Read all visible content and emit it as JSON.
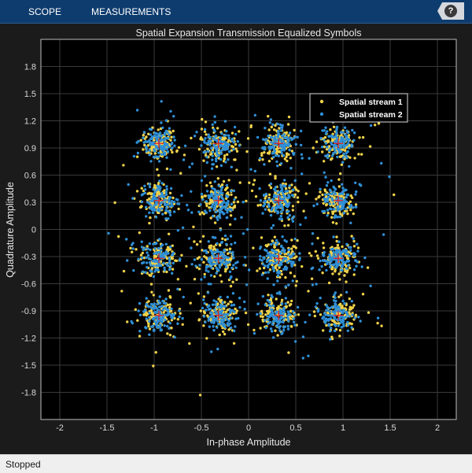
{
  "toolbar": {
    "tabs": [
      {
        "label": "SCOPE"
      },
      {
        "label": "MEASUREMENTS"
      }
    ],
    "help_label": "?"
  },
  "status": {
    "text": "Stopped"
  },
  "colors": {
    "toolbar_bg": "#0f3c6e",
    "figure_bg": "#1b1b1b",
    "axes_bg": "#000000",
    "series1": "#f0d24a",
    "series2": "#2e8fd6",
    "reference": "#e02020"
  },
  "chart_data": {
    "type": "scatter",
    "title": "Spatial Expansion Transmission Equalized Symbols",
    "xlabel": "In-phase Amplitude",
    "ylabel": "Quadrature Amplitude",
    "xlim": [
      -2.2,
      2.2
    ],
    "ylim": [
      -2.1,
      2.1
    ],
    "xticks": [
      -2,
      -1.5,
      -1,
      -0.5,
      0,
      0.5,
      1,
      1.5,
      2
    ],
    "xtick_labels": [
      "-2",
      "-1.5",
      "-1",
      "-0.5",
      "0",
      "0.5",
      "1",
      "1.5",
      "2"
    ],
    "yticks": [
      1.8,
      1.5,
      1.2,
      0.9,
      0.6,
      0.3,
      0,
      -0.3,
      -0.6,
      -0.9,
      -1.2,
      -1.5,
      -1.8
    ],
    "ytick_labels": [
      "1.8",
      "1.5",
      "1.2",
      "0.9",
      "0.6",
      "0.3",
      "0",
      "-0.3",
      "-0.6",
      "-0.9",
      "-1.2",
      "-1.5",
      "-1.8"
    ],
    "grid": true,
    "legend_position": "top-right",
    "reference_constellation": {
      "x": [
        -0.95,
        -0.32,
        0.32,
        0.95
      ],
      "y": [
        0.95,
        0.32,
        -0.32,
        -0.95
      ]
    },
    "series": [
      {
        "name": "Spatial stream 1",
        "color": "#f0d24a",
        "spread": 0.09
      },
      {
        "name": "Spatial stream 2",
        "color": "#2e8fd6",
        "spread": 0.09
      }
    ]
  }
}
